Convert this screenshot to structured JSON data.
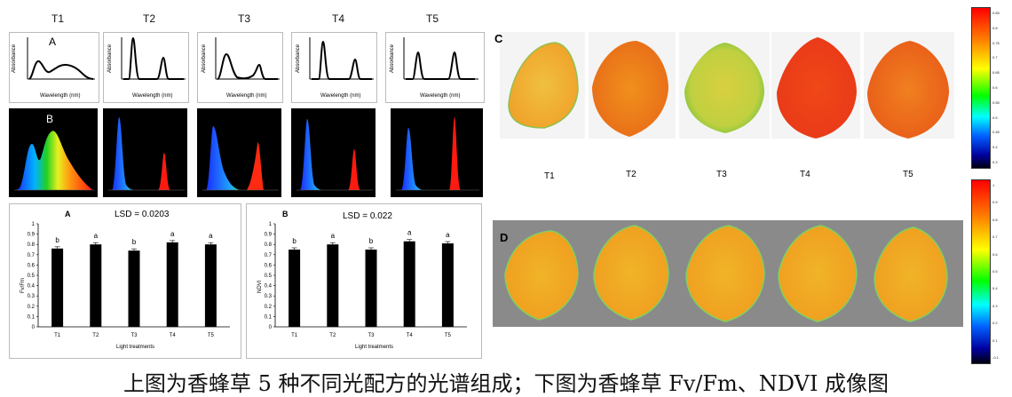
{
  "top_labels": [
    "T1",
    "T2",
    "T3",
    "T4",
    "T5"
  ],
  "abs_panel": {
    "letter": "A",
    "ylabel": "Absorbance",
    "xlabel": "Wavelength (nm)"
  },
  "spec_panel_letter": "B",
  "chart_a": {
    "letter": "A",
    "lsd": "LSD = 0.0203",
    "ylabel": "Fv/Fm",
    "xlabel": "Light treatments",
    "yticks": [
      "0",
      "0.1",
      "0.2",
      "0.3",
      "0.4",
      "0.5",
      "0.6",
      "0.7",
      "0.8",
      "0.9",
      "1"
    ]
  },
  "chart_b": {
    "letter": "B",
    "lsd": "LSD = 0.022",
    "ylabel": "NDVI",
    "xlabel": "Light treatments",
    "yticks": [
      "0",
      "0.1",
      "0.2",
      "0.3",
      "0.4",
      "0.5",
      "0.6",
      "0.7",
      "0.8",
      "0.9",
      "1"
    ]
  },
  "chart_data": [
    {
      "type": "bar",
      "title": "LSD = 0.0203",
      "xlabel": "Light treatments",
      "ylabel": "Fv/Fm",
      "ylim": [
        0,
        1
      ],
      "categories": [
        "T1",
        "T2",
        "T3",
        "T4",
        "T5"
      ],
      "values": [
        0.76,
        0.8,
        0.74,
        0.82,
        0.8
      ],
      "letters": [
        "b",
        "a",
        "b",
        "a",
        "a"
      ]
    },
    {
      "type": "bar",
      "title": "LSD = 0.022",
      "xlabel": "Light treatments",
      "ylabel": "NDVI",
      "ylim": [
        0,
        1
      ],
      "categories": [
        "T1",
        "T2",
        "T3",
        "T4",
        "T5"
      ],
      "values": [
        0.75,
        0.8,
        0.75,
        0.83,
        0.81
      ],
      "letters": [
        "b",
        "a",
        "b",
        "a",
        "a"
      ]
    }
  ],
  "image_c": {
    "letter": "C",
    "labels": [
      "T1",
      "T2",
      "T3",
      "T4",
      "T5"
    ],
    "colorbar_ticks": [
      "0.83",
      "0.8",
      "0.75",
      "0.7",
      "0.65",
      "0.6",
      "0.55",
      "0.5",
      "0.45",
      "0.4",
      "0.3"
    ]
  },
  "image_d": {
    "letter": "D",
    "colorbar_ticks": [
      "1",
      "0.9",
      "0.8",
      "0.7",
      "0.6",
      "0.5",
      "0.4",
      "0.3",
      "0.2",
      "0.1",
      "-0.1"
    ]
  },
  "caption": "上图为香蜂草 5 种不同光配方的光谱组成；下图为香蜂草 Fv/Fm、NDVI 成像图",
  "colors": {
    "bar": "#000000",
    "spectrum_blue": "#1a3cff",
    "spectrum_red": "#ff1a1a",
    "leaf_orange": "#f0961e"
  }
}
